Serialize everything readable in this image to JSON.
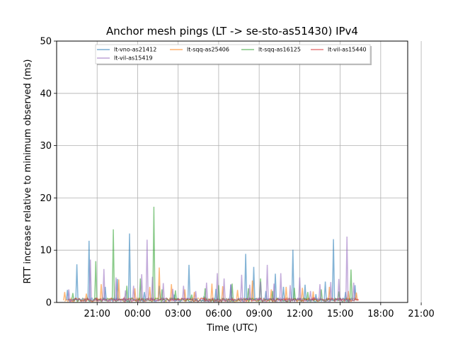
{
  "chart_data": {
    "type": "line",
    "title": "Anchor mesh pings (LT -> se-sto-as51430) IPv4",
    "xlabel": "Time (UTC)",
    "ylabel": "RTT increase relative to minimum observed (ms)",
    "ylim": [
      0,
      50
    ],
    "xlim": [
      -2.0,
      24.0
    ],
    "x_unit": "hours since 20:00 UTC",
    "xtick_values": [
      1,
      4,
      7,
      10,
      13,
      16,
      19,
      22,
      25
    ],
    "xtick_labels": [
      "21:00",
      "00:00",
      "03:00",
      "06:00",
      "09:00",
      "12:00",
      "15:00",
      "18:00",
      "21:00"
    ],
    "ytick_values": [
      0,
      10,
      20,
      30,
      40,
      50
    ],
    "ytick_labels": [
      "0",
      "10",
      "20",
      "30",
      "40",
      "50"
    ],
    "grid": true,
    "legend_placement": "top-center",
    "series": [
      {
        "name": "lt-vno-as21412",
        "color": "#1f77b4",
        "points": [
          [
            -1.2,
            2.4
          ],
          [
            -0.5,
            7.3
          ],
          [
            0.4,
            11.8
          ],
          [
            1.6,
            3.0
          ],
          [
            2.5,
            4.5
          ],
          [
            3.4,
            13.2
          ],
          [
            4.5,
            2.0
          ],
          [
            5.6,
            3.2
          ],
          [
            6.7,
            1.5
          ],
          [
            7.8,
            7.2
          ],
          [
            8.9,
            1.0
          ],
          [
            9.8,
            2.6
          ],
          [
            10.9,
            3.4
          ],
          [
            12.0,
            9.3
          ],
          [
            12.6,
            6.8
          ],
          [
            13.5,
            2.2
          ],
          [
            14.2,
            5.5
          ],
          [
            14.8,
            3.0
          ],
          [
            15.5,
            10.1
          ],
          [
            16.4,
            3.4
          ],
          [
            17.2,
            1.6
          ],
          [
            17.9,
            4.0
          ],
          [
            18.5,
            12.1
          ],
          [
            19.4,
            2.0
          ],
          [
            20.1,
            3.3
          ]
        ]
      },
      {
        "name": "lt-sqq-as25406",
        "color": "#ff7f0e",
        "points": [
          [
            -1.4,
            2.0
          ],
          [
            0.2,
            1.7
          ],
          [
            1.3,
            3.5
          ],
          [
            2.6,
            4.4
          ],
          [
            3.8,
            2.7
          ],
          [
            4.9,
            3.0
          ],
          [
            5.6,
            6.7
          ],
          [
            6.5,
            3.5
          ],
          [
            7.5,
            2.5
          ],
          [
            8.2,
            2.0
          ],
          [
            9.5,
            3.6
          ],
          [
            10.3,
            3.1
          ],
          [
            11.4,
            2.4
          ],
          [
            12.5,
            4.2
          ],
          [
            13.9,
            2.5
          ],
          [
            15.0,
            3.0
          ],
          [
            16.2,
            2.8
          ],
          [
            17.0,
            2.1
          ],
          [
            18.2,
            3.0
          ],
          [
            19.6,
            2.2
          ],
          [
            20.2,
            1.9
          ]
        ]
      },
      {
        "name": "lt-sqq-as16125",
        "color": "#2ca02c",
        "points": [
          [
            -0.8,
            1.8
          ],
          [
            0.9,
            7.9
          ],
          [
            2.2,
            14.0
          ],
          [
            3.2,
            3.2
          ],
          [
            4.2,
            4.6
          ],
          [
            5.2,
            18.3
          ],
          [
            5.8,
            2.5
          ],
          [
            6.8,
            2.3
          ],
          [
            8.0,
            1.5
          ],
          [
            9.0,
            2.7
          ],
          [
            10.0,
            3.3
          ],
          [
            11.0,
            3.6
          ],
          [
            12.2,
            2.7
          ],
          [
            13.1,
            4.6
          ],
          [
            14.0,
            2.2
          ],
          [
            15.6,
            2.8
          ],
          [
            16.6,
            2.0
          ],
          [
            17.6,
            2.5
          ],
          [
            18.9,
            2.1
          ],
          [
            19.8,
            6.3
          ]
        ]
      },
      {
        "name": "lt-vil-as15440",
        "color": "#d62728",
        "points": [
          [
            -1.0,
            0.6
          ],
          [
            1.0,
            0.8
          ],
          [
            3.0,
            0.9
          ],
          [
            5.0,
            0.8
          ],
          [
            7.0,
            0.7
          ],
          [
            9.0,
            0.9
          ],
          [
            11.0,
            0.8
          ],
          [
            13.0,
            0.7
          ],
          [
            15.0,
            0.8
          ],
          [
            17.0,
            0.9
          ],
          [
            19.0,
            0.7
          ],
          [
            20.3,
            0.6
          ]
        ]
      },
      {
        "name": "lt-vil-as15419",
        "color": "#9467bd",
        "points": [
          [
            -1.1,
            2.5
          ],
          [
            0.5,
            8.2
          ],
          [
            1.5,
            6.4
          ],
          [
            2.4,
            4.8
          ],
          [
            3.1,
            2.3
          ],
          [
            3.7,
            3.2
          ],
          [
            4.3,
            5.4
          ],
          [
            4.7,
            12.0
          ],
          [
            5.1,
            4.9
          ],
          [
            5.9,
            3.7
          ],
          [
            6.6,
            2.6
          ],
          [
            7.4,
            3.2
          ],
          [
            8.3,
            2.2
          ],
          [
            9.1,
            3.8
          ],
          [
            9.9,
            5.6
          ],
          [
            10.4,
            4.6
          ],
          [
            10.9,
            3.5
          ],
          [
            11.7,
            5.3
          ],
          [
            12.3,
            3.4
          ],
          [
            13.1,
            4.0
          ],
          [
            13.6,
            7.2
          ],
          [
            14.1,
            3.6
          ],
          [
            14.6,
            5.6
          ],
          [
            15.3,
            3.3
          ],
          [
            16.0,
            4.8
          ],
          [
            16.8,
            2.2
          ],
          [
            17.5,
            3.5
          ],
          [
            18.3,
            3.9
          ],
          [
            18.9,
            4.5
          ],
          [
            19.5,
            12.6
          ],
          [
            20.0,
            3.8
          ]
        ]
      }
    ]
  }
}
